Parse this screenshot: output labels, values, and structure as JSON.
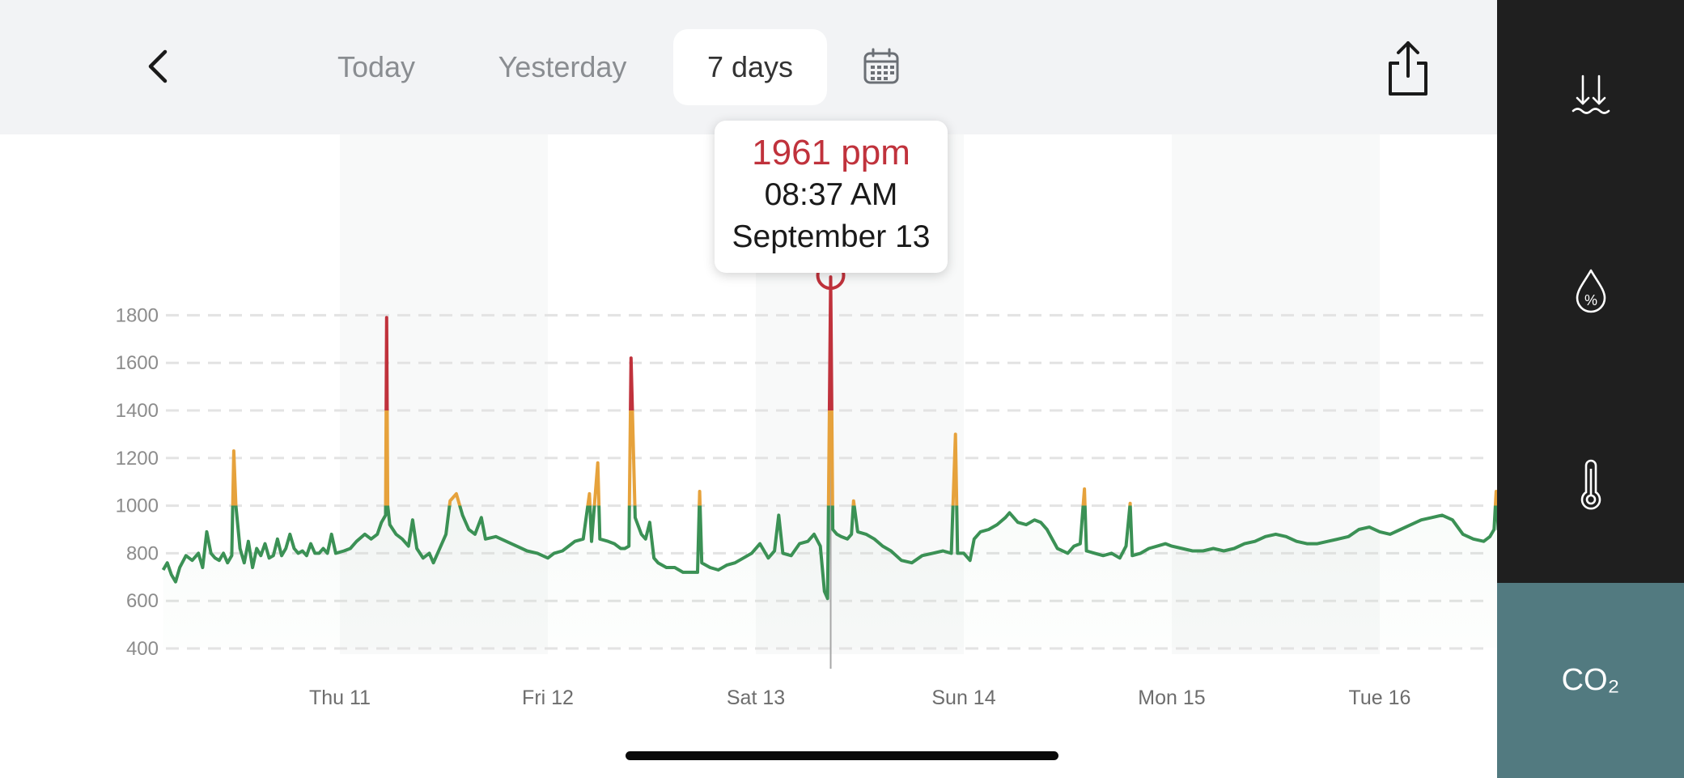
{
  "nav": {
    "tabs": [
      {
        "label": "Today",
        "active": false
      },
      {
        "label": "Yesterday",
        "active": false
      },
      {
        "label": "7 days",
        "active": true
      }
    ],
    "back_icon": "chevron-left-icon",
    "calendar_icon": "calendar-icon",
    "share_icon": "share-icon"
  },
  "sidebar": {
    "items": [
      {
        "id": "pressure",
        "icon": "pressure-icon",
        "active": false
      },
      {
        "id": "humidity",
        "icon": "humidity-icon",
        "active": false
      },
      {
        "id": "temperature",
        "icon": "thermometer-icon",
        "active": false
      },
      {
        "id": "co2",
        "label": "CO₂",
        "active": true
      }
    ],
    "active_color": "#527a80"
  },
  "tooltip": {
    "value": "1961 ppm",
    "time": "08:37 AM",
    "date": "September 13"
  },
  "chart_data": {
    "type": "line",
    "title": "",
    "xlabel": "",
    "ylabel": "",
    "yticks": [
      400,
      600,
      800,
      1000,
      1200,
      1400,
      1600,
      1800
    ],
    "ylim": [
      400,
      1800
    ],
    "xticks": [
      "Thu 11",
      "Fri 12",
      "Sat 13",
      "Sun 14",
      "Mon 15",
      "Tue 16"
    ],
    "grid": true,
    "colors": {
      "normal": "#3b9155",
      "elevated": "#e6a23c",
      "high": "#c0323c"
    },
    "thresholds": [
      1000,
      1400
    ],
    "selected_point": {
      "day": 2.36,
      "value": 1961
    },
    "series": [
      {
        "points": [
          [
            -0.85,
            730
          ],
          [
            -0.83,
            760
          ],
          [
            -0.81,
            710
          ],
          [
            -0.79,
            680
          ],
          [
            -0.77,
            740
          ],
          [
            -0.74,
            790
          ],
          [
            -0.71,
            770
          ],
          [
            -0.68,
            800
          ],
          [
            -0.66,
            740
          ],
          [
            -0.64,
            890
          ],
          [
            -0.62,
            800
          ],
          [
            -0.6,
            780
          ],
          [
            -0.58,
            770
          ],
          [
            -0.56,
            800
          ],
          [
            -0.54,
            760
          ],
          [
            -0.52,
            790
          ],
          [
            -0.51,
            1230
          ],
          [
            -0.5,
            1000
          ],
          [
            -0.48,
            820
          ],
          [
            -0.46,
            760
          ],
          [
            -0.44,
            850
          ],
          [
            -0.42,
            740
          ],
          [
            -0.4,
            820
          ],
          [
            -0.38,
            790
          ],
          [
            -0.36,
            840
          ],
          [
            -0.34,
            780
          ],
          [
            -0.32,
            790
          ],
          [
            -0.3,
            860
          ],
          [
            -0.28,
            790
          ],
          [
            -0.26,
            820
          ],
          [
            -0.24,
            880
          ],
          [
            -0.22,
            820
          ],
          [
            -0.2,
            800
          ],
          [
            -0.18,
            810
          ],
          [
            -0.16,
            790
          ],
          [
            -0.14,
            840
          ],
          [
            -0.12,
            800
          ],
          [
            -0.1,
            800
          ],
          [
            -0.08,
            820
          ],
          [
            -0.06,
            800
          ],
          [
            -0.04,
            880
          ],
          [
            -0.02,
            800
          ],
          [
            0.02,
            810
          ],
          [
            0.05,
            820
          ],
          [
            0.08,
            850
          ],
          [
            0.12,
            880
          ],
          [
            0.15,
            860
          ],
          [
            0.18,
            880
          ],
          [
            0.2,
            930
          ],
          [
            0.22,
            960
          ],
          [
            0.225,
            1790
          ],
          [
            0.23,
            1000
          ],
          [
            0.24,
            920
          ],
          [
            0.27,
            880
          ],
          [
            0.3,
            860
          ],
          [
            0.33,
            830
          ],
          [
            0.35,
            940
          ],
          [
            0.37,
            820
          ],
          [
            0.4,
            780
          ],
          [
            0.43,
            800
          ],
          [
            0.45,
            760
          ],
          [
            0.48,
            820
          ],
          [
            0.51,
            880
          ],
          [
            0.53,
            1020
          ],
          [
            0.56,
            1050
          ],
          [
            0.59,
            960
          ],
          [
            0.62,
            900
          ],
          [
            0.65,
            880
          ],
          [
            0.68,
            950
          ],
          [
            0.7,
            860
          ],
          [
            0.75,
            870
          ],
          [
            0.8,
            850
          ],
          [
            0.85,
            830
          ],
          [
            0.9,
            810
          ],
          [
            0.95,
            800
          ],
          [
            1.0,
            780
          ],
          [
            1.03,
            800
          ],
          [
            1.07,
            810
          ],
          [
            1.1,
            830
          ],
          [
            1.13,
            850
          ],
          [
            1.17,
            860
          ],
          [
            1.2,
            1050
          ],
          [
            1.21,
            850
          ],
          [
            1.24,
            1180
          ],
          [
            1.25,
            860
          ],
          [
            1.29,
            850
          ],
          [
            1.32,
            840
          ],
          [
            1.35,
            820
          ],
          [
            1.37,
            820
          ],
          [
            1.39,
            830
          ],
          [
            1.4,
            1620
          ],
          [
            1.42,
            950
          ],
          [
            1.45,
            880
          ],
          [
            1.47,
            860
          ],
          [
            1.49,
            930
          ],
          [
            1.51,
            780
          ],
          [
            1.53,
            760
          ],
          [
            1.57,
            740
          ],
          [
            1.61,
            740
          ],
          [
            1.65,
            720
          ],
          [
            1.69,
            720
          ],
          [
            1.72,
            720
          ],
          [
            1.73,
            1060
          ],
          [
            1.74,
            760
          ],
          [
            1.78,
            740
          ],
          [
            1.82,
            730
          ],
          [
            1.86,
            750
          ],
          [
            1.9,
            760
          ],
          [
            1.94,
            780
          ],
          [
            1.98,
            800
          ],
          [
            2.02,
            840
          ],
          [
            2.06,
            780
          ],
          [
            2.09,
            810
          ],
          [
            2.11,
            960
          ],
          [
            2.13,
            800
          ],
          [
            2.17,
            790
          ],
          [
            2.21,
            840
          ],
          [
            2.25,
            850
          ],
          [
            2.28,
            880
          ],
          [
            2.31,
            830
          ],
          [
            2.33,
            640
          ],
          [
            2.345,
            610
          ],
          [
            2.36,
            1961
          ],
          [
            2.37,
            900
          ],
          [
            2.39,
            880
          ],
          [
            2.41,
            870
          ],
          [
            2.44,
            860
          ],
          [
            2.46,
            880
          ],
          [
            2.47,
            1020
          ],
          [
            2.49,
            890
          ],
          [
            2.53,
            880
          ],
          [
            2.57,
            860
          ],
          [
            2.61,
            830
          ],
          [
            2.65,
            810
          ],
          [
            2.7,
            770
          ],
          [
            2.75,
            760
          ],
          [
            2.8,
            790
          ],
          [
            2.85,
            800
          ],
          [
            2.9,
            810
          ],
          [
            2.94,
            800
          ],
          [
            2.96,
            1300
          ],
          [
            2.97,
            800
          ],
          [
            3.0,
            800
          ],
          [
            3.03,
            770
          ],
          [
            3.05,
            860
          ],
          [
            3.08,
            890
          ],
          [
            3.12,
            900
          ],
          [
            3.16,
            920
          ],
          [
            3.2,
            950
          ],
          [
            3.22,
            970
          ],
          [
            3.26,
            930
          ],
          [
            3.3,
            920
          ],
          [
            3.34,
            940
          ],
          [
            3.37,
            930
          ],
          [
            3.4,
            900
          ],
          [
            3.45,
            820
          ],
          [
            3.5,
            800
          ],
          [
            3.53,
            830
          ],
          [
            3.56,
            840
          ],
          [
            3.58,
            1070
          ],
          [
            3.59,
            810
          ],
          [
            3.63,
            800
          ],
          [
            3.67,
            790
          ],
          [
            3.71,
            800
          ],
          [
            3.75,
            780
          ],
          [
            3.78,
            830
          ],
          [
            3.8,
            1010
          ],
          [
            3.81,
            790
          ],
          [
            3.85,
            800
          ],
          [
            3.89,
            820
          ],
          [
            3.93,
            830
          ],
          [
            3.97,
            840
          ],
          [
            4.0,
            830
          ],
          [
            4.05,
            820
          ],
          [
            4.1,
            810
          ],
          [
            4.15,
            810
          ],
          [
            4.2,
            820
          ],
          [
            4.25,
            810
          ],
          [
            4.3,
            820
          ],
          [
            4.35,
            840
          ],
          [
            4.4,
            850
          ],
          [
            4.45,
            870
          ],
          [
            4.5,
            880
          ],
          [
            4.55,
            870
          ],
          [
            4.6,
            850
          ],
          [
            4.65,
            840
          ],
          [
            4.7,
            840
          ],
          [
            4.75,
            850
          ],
          [
            4.8,
            860
          ],
          [
            4.85,
            870
          ],
          [
            4.9,
            900
          ],
          [
            4.95,
            910
          ],
          [
            5.0,
            890
          ],
          [
            5.05,
            880
          ],
          [
            5.1,
            900
          ],
          [
            5.15,
            920
          ],
          [
            5.2,
            940
          ],
          [
            5.25,
            950
          ],
          [
            5.3,
            960
          ],
          [
            5.35,
            940
          ],
          [
            5.4,
            880
          ],
          [
            5.45,
            860
          ],
          [
            5.5,
            850
          ],
          [
            5.53,
            870
          ],
          [
            5.55,
            900
          ],
          [
            5.56,
            1060
          ],
          [
            5.57,
            900
          ],
          [
            5.59,
            880
          ]
        ]
      }
    ]
  }
}
